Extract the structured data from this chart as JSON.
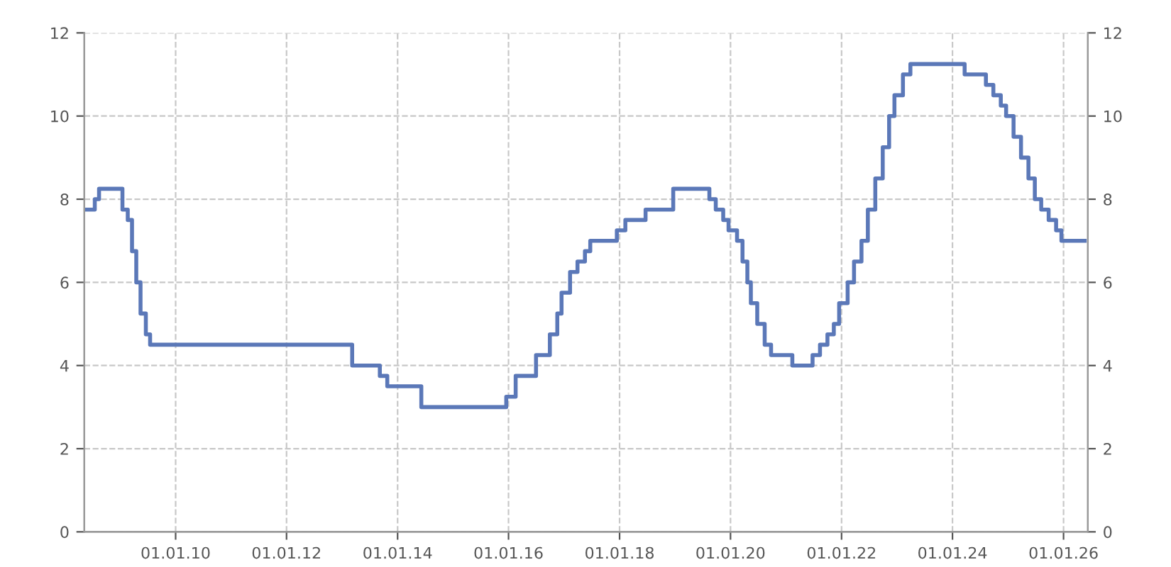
{
  "chart_data": {
    "type": "step",
    "x": [
      "2008-05-10",
      "2008-07-18",
      "2008-08-15",
      "2009-01-16",
      "2009-02-20",
      "2009-03-20",
      "2009-04-17",
      "2009-05-15",
      "2009-06-19",
      "2009-07-17",
      "2013-03-08",
      "2013-09-06",
      "2013-10-25",
      "2014-06-06",
      "2015-12-17",
      "2016-02-17",
      "2016-06-30",
      "2016-09-29",
      "2016-11-17",
      "2016-12-15",
      "2017-02-09",
      "2017-03-30",
      "2017-05-18",
      "2017-06-22",
      "2017-12-14",
      "2018-02-08",
      "2018-06-21",
      "2018-12-20",
      "2019-08-15",
      "2019-09-26",
      "2019-11-14",
      "2019-12-19",
      "2020-02-13",
      "2020-03-20",
      "2020-04-21",
      "2020-05-14",
      "2020-06-25",
      "2020-08-13",
      "2020-09-24",
      "2021-02-11",
      "2021-06-24",
      "2021-08-12",
      "2021-09-30",
      "2021-11-11",
      "2021-12-16",
      "2022-02-10",
      "2022-03-24",
      "2022-05-12",
      "2022-06-23",
      "2022-08-11",
      "2022-09-29",
      "2022-11-10",
      "2022-12-15",
      "2023-02-09",
      "2023-03-30",
      "2024-03-21",
      "2024-08-08",
      "2024-09-26",
      "2024-11-14",
      "2024-12-19",
      "2025-02-06",
      "2025-03-27",
      "2025-05-15",
      "2025-06-26",
      "2025-08-07",
      "2025-09-25",
      "2025-11-13",
      "2025-12-18",
      "2026-05-20"
    ],
    "series": [
      {
        "color": "#5b78b8",
        "values": [
          7.75,
          8.0,
          8.25,
          7.75,
          7.5,
          6.75,
          6.0,
          5.25,
          4.75,
          4.5,
          4.0,
          3.75,
          3.5,
          3.0,
          3.25,
          3.75,
          4.25,
          4.75,
          5.25,
          5.75,
          6.25,
          6.5,
          6.75,
          7.0,
          7.25,
          7.5,
          7.75,
          8.25,
          8.0,
          7.75,
          7.5,
          7.25,
          7.0,
          6.5,
          6.0,
          5.5,
          5.0,
          4.5,
          4.25,
          4.0,
          4.25,
          4.5,
          4.75,
          5.0,
          5.5,
          6.0,
          6.5,
          7.0,
          7.75,
          8.5,
          9.25,
          10.0,
          10.5,
          11.0,
          11.25,
          11.0,
          10.75,
          10.5,
          10.25,
          10.0,
          9.5,
          9.0,
          8.5,
          8.0,
          7.75,
          7.5,
          7.25,
          7.0,
          7.0
        ]
      }
    ],
    "xlim": [
      "2008-05-10",
      "2026-06-10"
    ],
    "xticks": [
      {
        "value": "2010-01-01",
        "label": "01.01.10"
      },
      {
        "value": "2012-01-01",
        "label": "01.01.12"
      },
      {
        "value": "2014-01-01",
        "label": "01.01.14"
      },
      {
        "value": "2016-01-01",
        "label": "01.01.16"
      },
      {
        "value": "2018-01-01",
        "label": "01.01.18"
      },
      {
        "value": "2020-01-01",
        "label": "01.01.20"
      },
      {
        "value": "2022-01-01",
        "label": "01.01.22"
      },
      {
        "value": "2024-01-01",
        "label": "01.01.24"
      },
      {
        "value": "2026-01-01",
        "label": "01.01.26"
      }
    ],
    "ylim": [
      0,
      12
    ],
    "yticks": [
      0,
      2,
      4,
      6,
      8,
      10,
      12
    ],
    "y2lim": [
      0,
      12
    ],
    "y2ticks": [
      0,
      2,
      4,
      6,
      8,
      10,
      12
    ],
    "grid": true,
    "line_style": "solid",
    "marker": "none"
  }
}
